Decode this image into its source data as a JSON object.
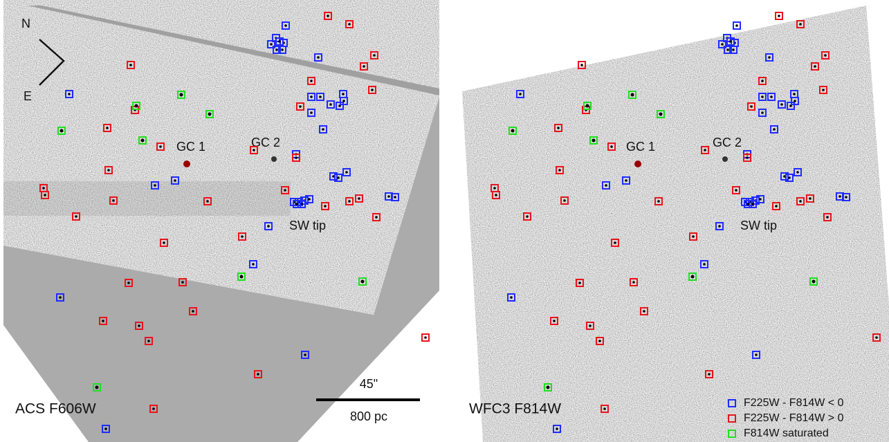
{
  "left_panel": {
    "compass": {
      "north": "N",
      "east": "E"
    },
    "labels": [
      "GC 1",
      "GC 2",
      "SW tip"
    ],
    "panel_label": "ACS F606W",
    "scale_bar": {
      "angular": "45\"",
      "physical": "800 pc"
    }
  },
  "right_panel": {
    "labels": [
      "GC 1",
      "GC 2",
      "SW tip"
    ],
    "panel_label": "WFC3 F814W"
  },
  "legend": [
    {
      "label": "F225W - F814W < 0",
      "color": "#1f2bff"
    },
    {
      "label": "F225W - F814W > 0",
      "color": "#e8141c"
    },
    {
      "label": "F814W saturated",
      "color": "#1fe01f"
    }
  ]
}
